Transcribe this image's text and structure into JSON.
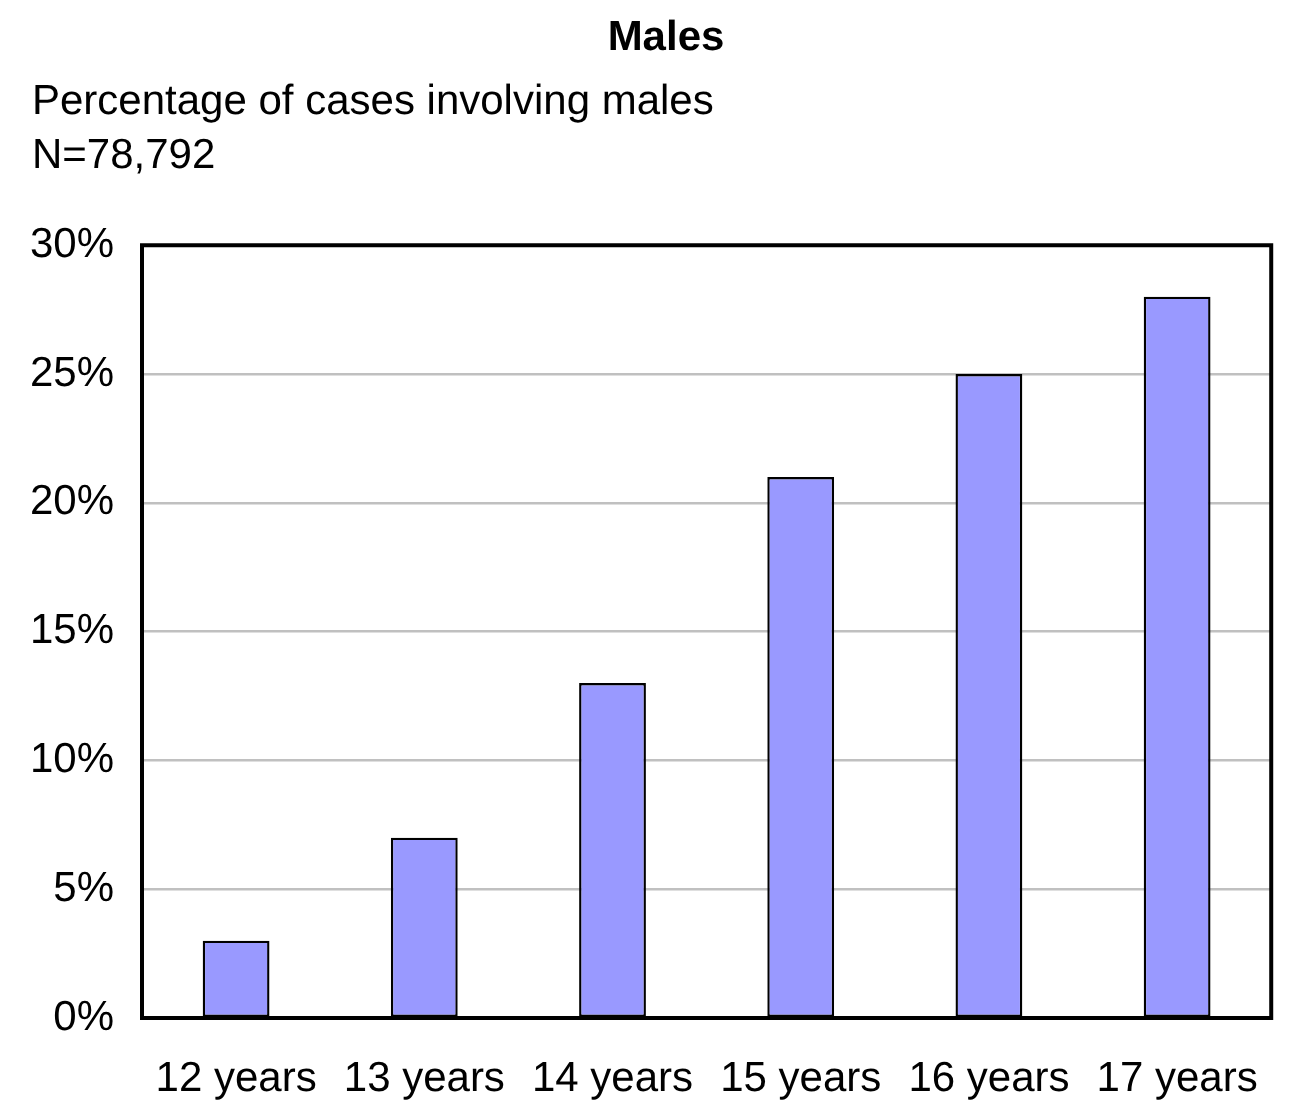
{
  "chart_data": {
    "type": "bar",
    "title": "Males",
    "subtitle": "Percentage of cases involving males",
    "annotations": [
      "N=78,792"
    ],
    "categories": [
      "12 years",
      "13 years",
      "14 years",
      "15 years",
      "16 years",
      "17 years"
    ],
    "values": [
      3,
      7,
      13,
      21,
      25,
      28
    ],
    "color": "#9999ff",
    "ylim": [
      0,
      30
    ],
    "yticks": [
      {
        "value": 0,
        "label": "0%"
      },
      {
        "value": 5,
        "label": "5%"
      },
      {
        "value": 10,
        "label": "10%"
      },
      {
        "value": 15,
        "label": "15%"
      },
      {
        "value": 20,
        "label": "20%"
      },
      {
        "value": 25,
        "label": "25%"
      },
      {
        "value": 30,
        "label": "30%"
      }
    ],
    "grid": "y"
  }
}
